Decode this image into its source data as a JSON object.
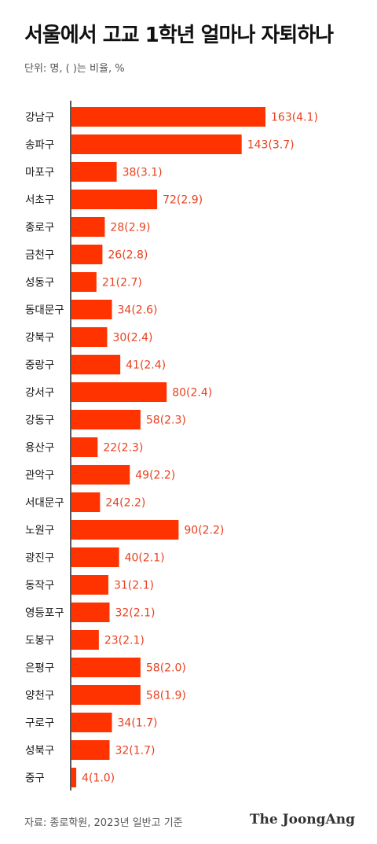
{
  "header": {
    "title": "서울에서 고교 1학년 얼마나 자퇴하나",
    "subtitle": "단위: 명, ( )는 비율, %"
  },
  "footer": {
    "source": "자료: 종로학원, 2023년 일반고 기준",
    "brand": "The JoongAng"
  },
  "colors": {
    "bar": "#ff3300",
    "value_text": "#e8401f"
  },
  "chart_data": {
    "type": "bar",
    "orientation": "horizontal",
    "title": "서울에서 고교 1학년 얼마나 자퇴하나",
    "subtitle": "단위: 명, ( )는 비율, %",
    "categories": [
      "강남구",
      "송파구",
      "마포구",
      "서초구",
      "종로구",
      "금천구",
      "성동구",
      "동대문구",
      "강북구",
      "중랑구",
      "강서구",
      "강동구",
      "용산구",
      "관악구",
      "서대문구",
      "노원구",
      "광진구",
      "동작구",
      "영등포구",
      "도봉구",
      "은평구",
      "양천구",
      "구로구",
      "성북구",
      "중구"
    ],
    "values": [
      163,
      143,
      38,
      72,
      28,
      26,
      21,
      34,
      30,
      41,
      80,
      58,
      22,
      49,
      24,
      90,
      40,
      31,
      32,
      23,
      58,
      58,
      34,
      32,
      4
    ],
    "rates": [
      4.1,
      3.7,
      3.1,
      2.9,
      2.9,
      2.8,
      2.7,
      2.6,
      2.4,
      2.4,
      2.4,
      2.3,
      2.3,
      2.2,
      2.2,
      2.2,
      2.1,
      2.1,
      2.1,
      2.1,
      2.0,
      1.9,
      1.7,
      1.7,
      1.0
    ],
    "value_labels": [
      "163(4.1)",
      "143(3.7)",
      "38(3.1)",
      "72(2.9)",
      "28(2.9)",
      "26(2.8)",
      "21(2.7)",
      "34(2.6)",
      "30(2.4)",
      "41(2.4)",
      "80(2.4)",
      "58(2.3)",
      "22(2.3)",
      "49(2.2)",
      "24(2.2)",
      "90(2.2)",
      "40(2.1)",
      "31(2.1)",
      "32(2.1)",
      "23(2.1)",
      "58(2.0)",
      "58(1.9)",
      "34(1.7)",
      "32(1.7)",
      "4(1.0)"
    ],
    "xlim": [
      0,
      163
    ],
    "grid": false,
    "legend": "none"
  }
}
